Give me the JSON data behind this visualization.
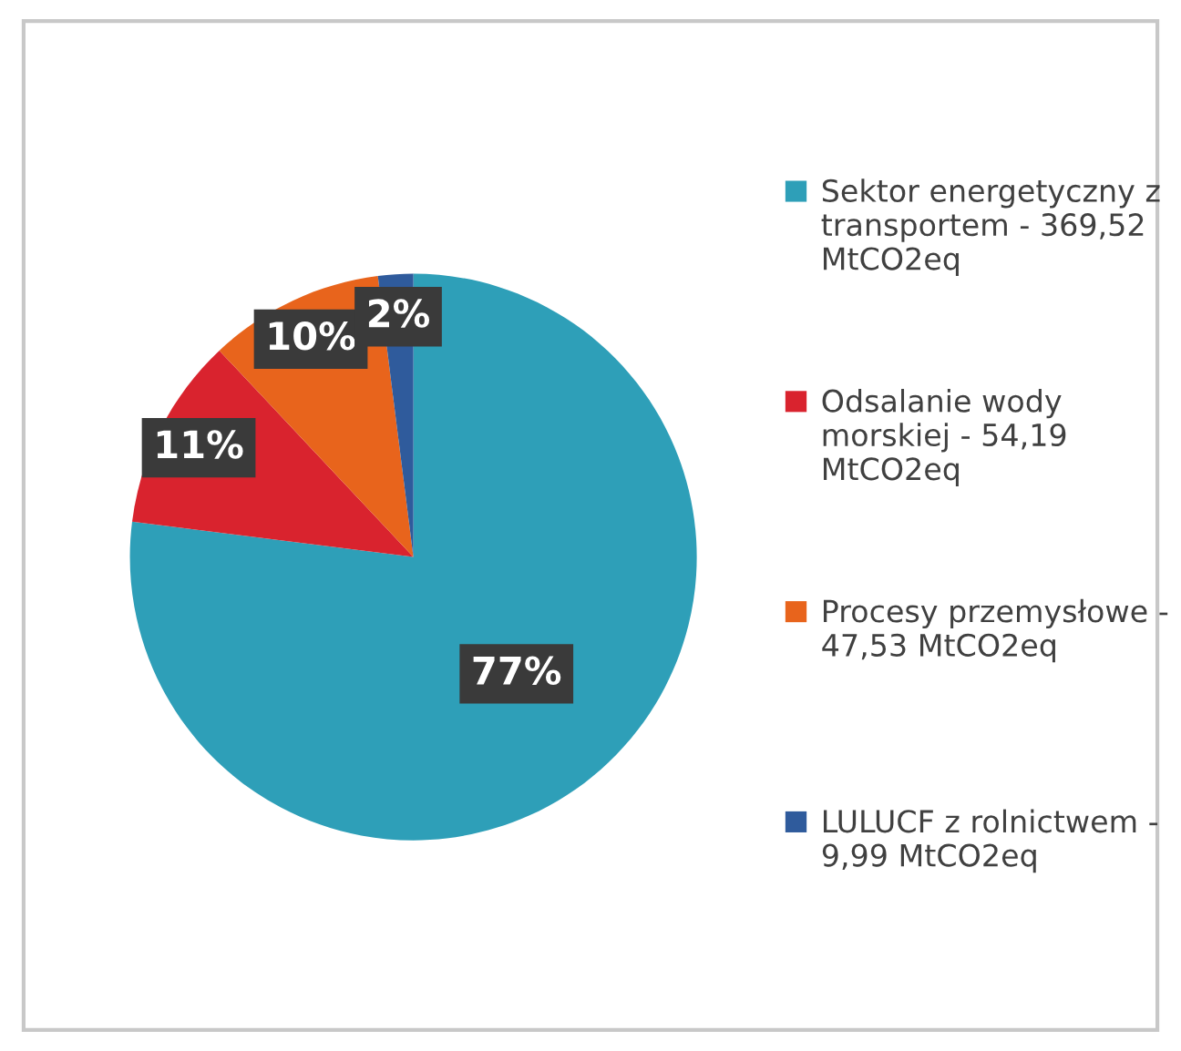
{
  "chart_data": {
    "type": "pie",
    "categories": [
      "Sektor energetyczny z transportem - 369,52 MtCO2eq",
      "Odsalanie wody morskiej - 54,19 MtCO2eq",
      "Procesy przemysłowe - 47,53 MtCO2eq",
      "LULUCF z rolnictwem - 9,99 MtCO2eq"
    ],
    "values": [
      77,
      11,
      10,
      2
    ],
    "colors": [
      "#2e9fb8",
      "#d9232e",
      "#e8641c",
      "#2f5b9c"
    ],
    "value_labels": [
      "77%",
      "11%",
      "10%",
      "2%"
    ],
    "legend": "right"
  }
}
